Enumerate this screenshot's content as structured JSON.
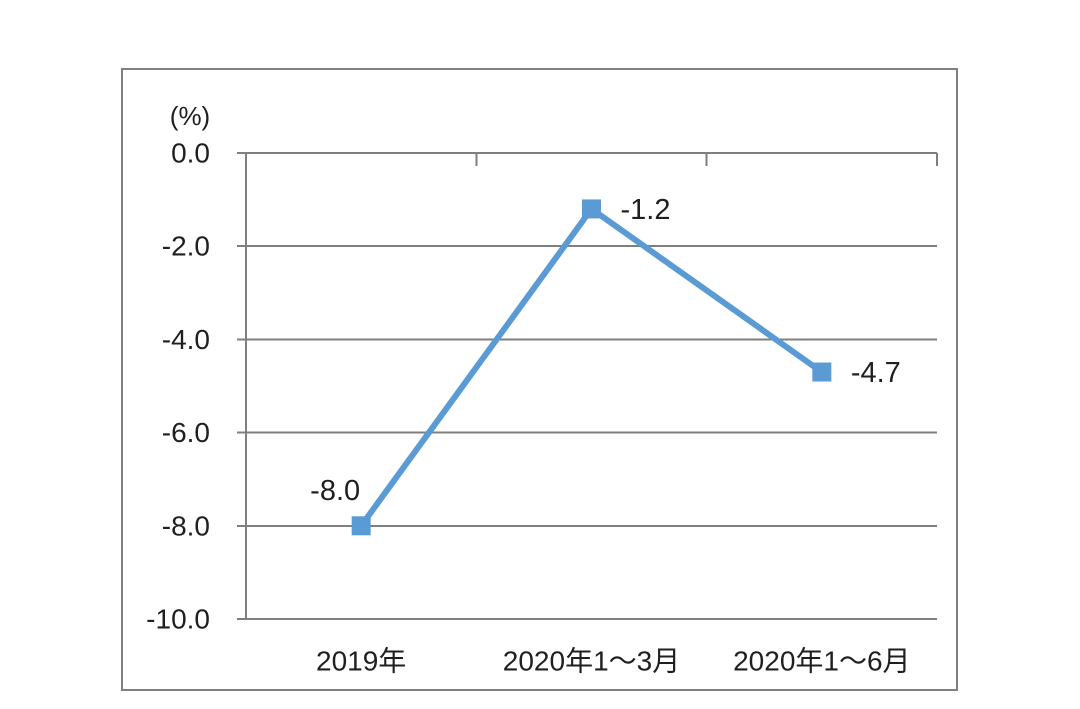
{
  "chart_data": {
    "type": "line",
    "title": "",
    "unit_label": "(%)",
    "categories": [
      "2019年",
      "2020年1～3月",
      "2020年1～6月"
    ],
    "series": [
      {
        "name": "series-1",
        "values": [
          -8.0,
          -1.2,
          -4.7
        ]
      }
    ],
    "data_labels": [
      "-8.0",
      "-1.2",
      "-4.7"
    ],
    "label_positions": [
      "above-left",
      "right",
      "right"
    ],
    "y_ticks": [
      {
        "label": "0.0",
        "value": 0
      },
      {
        "label": "-2.0",
        "value": -2
      },
      {
        "label": "-4.0",
        "value": -4
      },
      {
        "label": "-6.0",
        "value": -6
      },
      {
        "label": "-8.0",
        "value": -8
      },
      {
        "label": "-10.0",
        "value": -10
      }
    ],
    "ylim": [
      -10,
      0
    ],
    "xlabel": "",
    "ylabel": "(%)",
    "grid": true,
    "legend_position": "none",
    "marker": "square",
    "colors": {
      "line": "#5B9BD5",
      "marker": "#5B9BD5",
      "grid": "#7F7F7F",
      "axis": "#7F7F7F",
      "frame": "#808080",
      "text": "#1F1F1F",
      "background": "#FFFFFF"
    }
  }
}
